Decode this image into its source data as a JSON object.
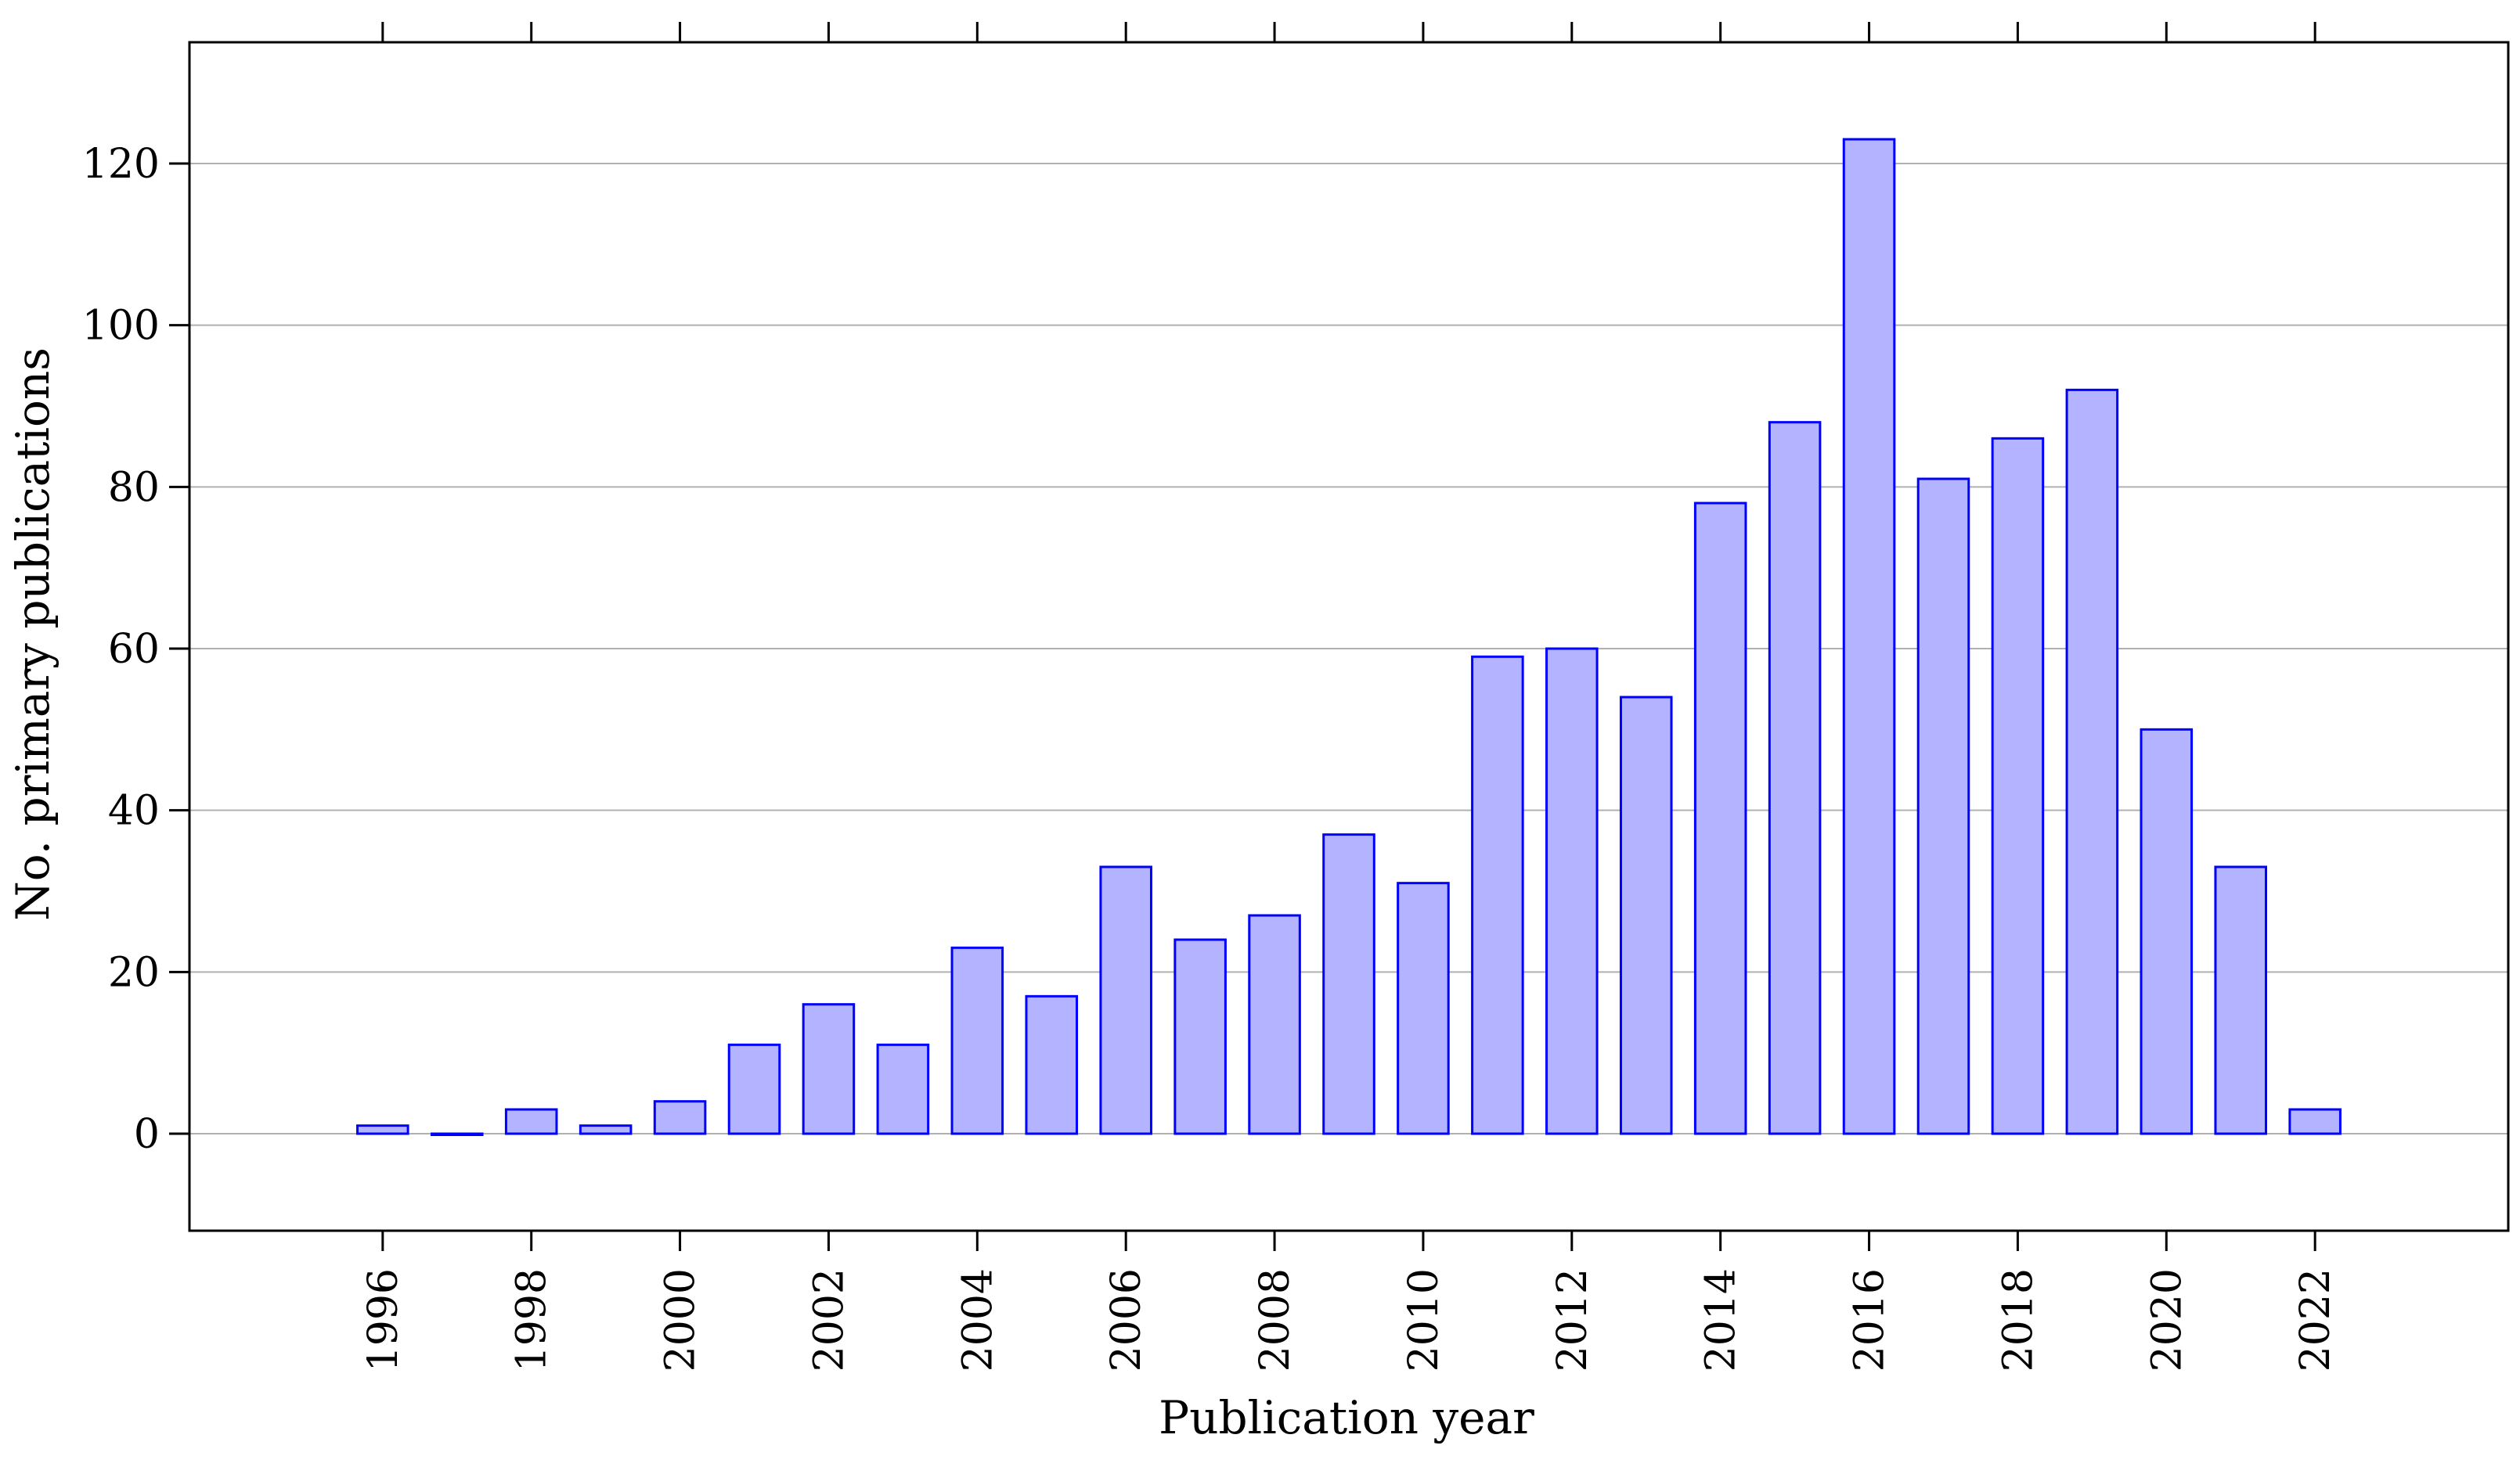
{
  "chart_data": {
    "type": "bar",
    "xlabel": "Publication year",
    "ylabel": "No. primary publications",
    "ylim": [
      -12,
      135
    ],
    "xlim": [
      1993.4,
      2024.6
    ],
    "yticks": [
      0,
      20,
      40,
      60,
      80,
      100,
      120
    ],
    "xticks": [
      1996,
      1998,
      2000,
      2002,
      2004,
      2006,
      2008,
      2010,
      2012,
      2014,
      2016,
      2018,
      2020,
      2022
    ],
    "xtick_labels": [
      "1996",
      "1998",
      "2000",
      "2002",
      "2004",
      "2006",
      "2008",
      "2010",
      "2012",
      "2014",
      "2016",
      "2018",
      "2020",
      "2022"
    ],
    "ytick_labels": [
      "0",
      "20",
      "40",
      "60",
      "80",
      "100",
      "120"
    ],
    "grid": "horizontal",
    "categories": [
      1996,
      1997,
      1998,
      1999,
      2000,
      2001,
      2002,
      2003,
      2004,
      2005,
      2006,
      2007,
      2008,
      2009,
      2010,
      2011,
      2012,
      2013,
      2014,
      2015,
      2016,
      2017,
      2018,
      2019,
      2020,
      2021,
      2022
    ],
    "values": [
      1,
      0,
      3,
      1,
      4,
      11,
      16,
      11,
      23,
      17,
      33,
      24,
      27,
      37,
      31,
      59,
      60,
      54,
      78,
      88,
      123,
      81,
      86,
      92,
      50,
      33,
      3
    ],
    "bar_fill": "#b3b3ff",
    "bar_stroke": "#0000ff",
    "grid_color": "#b0b0b0",
    "axis_color": "#000000"
  }
}
